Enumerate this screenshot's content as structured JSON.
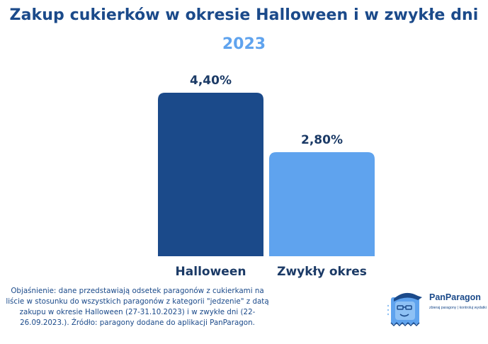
{
  "chart_data": {
    "type": "bar",
    "title": "Zakup cukierków w okresie Halloween i w zwykłe dni",
    "subtitle": "2023",
    "categories": [
      "Halloween",
      "Zwykły okres"
    ],
    "values": [
      4.4,
      2.8
    ],
    "value_labels": [
      "4,40%",
      "2,80%"
    ],
    "colors": [
      "#1b4a8a",
      "#5fa3ee"
    ],
    "ylim": [
      0,
      4.4
    ],
    "grid": false,
    "legend": "none"
  },
  "footnote": "Objaśnienie: dane przedstawiają odsetek paragonów z cukierkami na liście w stosunku do wszystkich paragonów z kategorii \"jedzenie\" z datą zakupu w okresie Halloween (27-31.10.2023)  i w zwykłe dni (22-26.09.2023.). Źródło: paragony dodane do aplikacji PanParagon.",
  "logo": {
    "name": "PanParagon",
    "tagline": "zbieraj paragony | kontroluj wydatki",
    "icon": "panparagon-mascot-icon"
  }
}
